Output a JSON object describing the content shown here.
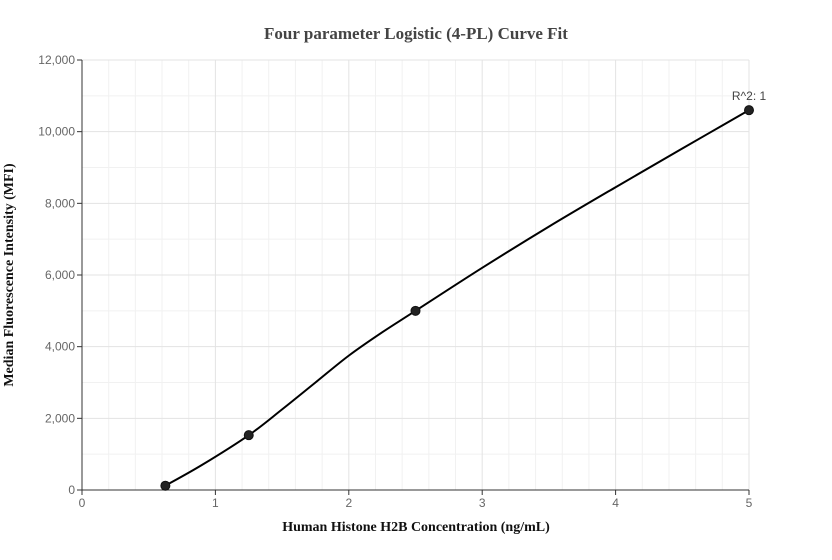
{
  "chart_data": {
    "type": "scatter",
    "title": "Four parameter Logistic (4-PL) Curve Fit",
    "xlabel": "Human Histone H2B Concentration (ng/mL)",
    "ylabel": "Median Fluorescence Intensity (MFI)",
    "xlim": [
      0,
      5
    ],
    "ylim": [
      0,
      12000
    ],
    "x_ticks": [
      "0",
      "1",
      "2",
      "3",
      "4",
      "5"
    ],
    "y_ticks": [
      "0",
      "2,000",
      "4,000",
      "6,000",
      "8,000",
      "10,000",
      "12,000"
    ],
    "grid": true,
    "points": [
      {
        "x": 0.625,
        "y": 120
      },
      {
        "x": 1.25,
        "y": 1530
      },
      {
        "x": 2.5,
        "y": 5000
      },
      {
        "x": 5.0,
        "y": 10600
      }
    ],
    "fit_curve": [
      {
        "x": 0.625,
        "y": 120
      },
      {
        "x": 0.9,
        "y": 700
      },
      {
        "x": 1.25,
        "y": 1530
      },
      {
        "x": 1.5,
        "y": 2250
      },
      {
        "x": 1.75,
        "y": 3000
      },
      {
        "x": 2.0,
        "y": 3750
      },
      {
        "x": 2.25,
        "y": 4400
      },
      {
        "x": 2.5,
        "y": 5000
      },
      {
        "x": 3.0,
        "y": 6200
      },
      {
        "x": 3.5,
        "y": 7350
      },
      {
        "x": 4.0,
        "y": 8450
      },
      {
        "x": 4.5,
        "y": 9530
      },
      {
        "x": 5.0,
        "y": 10600
      }
    ],
    "annotation": "R^2: 1"
  }
}
